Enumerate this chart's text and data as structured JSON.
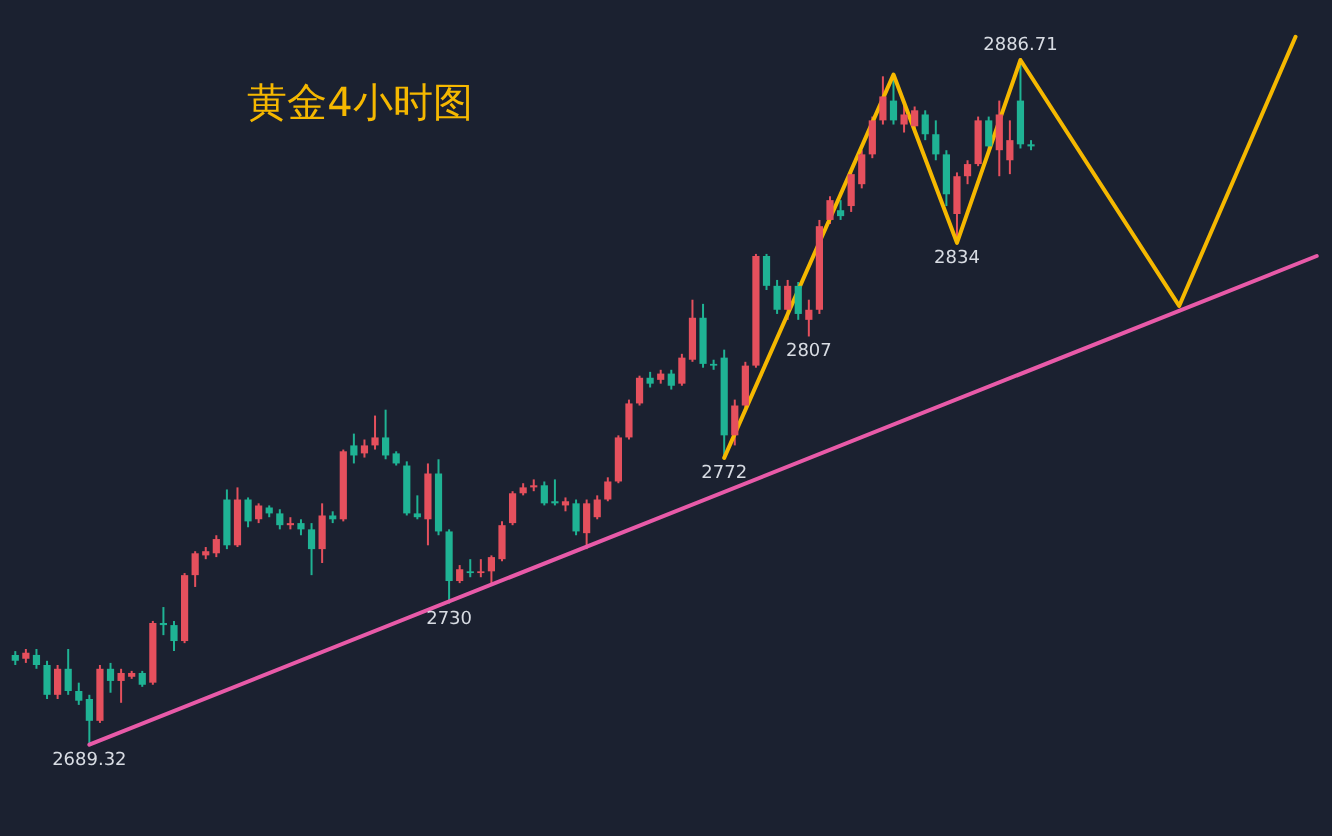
{
  "chart_data": {
    "type": "candlestick",
    "title": "黄金4小时图",
    "categories": [
      null,
      null,
      null,
      null,
      null,
      null,
      null,
      null,
      null,
      null,
      null,
      null,
      null,
      null,
      null,
      null,
      null,
      null,
      null,
      null,
      null,
      null,
      null,
      null,
      null,
      null,
      null,
      null,
      null,
      null,
      null,
      null,
      null,
      null,
      null,
      null,
      null,
      null,
      null,
      null,
      null,
      null,
      null,
      null,
      null,
      null,
      null,
      null,
      null,
      null,
      null,
      null,
      null,
      null,
      null,
      null,
      null,
      null,
      null,
      null,
      null,
      null,
      null,
      null,
      null,
      null,
      null,
      null,
      null,
      null,
      null,
      null,
      null,
      null,
      null,
      null,
      null,
      null,
      null,
      null,
      null,
      null,
      null,
      null,
      null,
      null,
      null,
      null,
      null,
      null,
      null,
      null,
      null,
      null,
      null,
      null,
      null,
      null,
      null,
      null,
      null,
      null,
      null,
      null,
      null,
      null,
      null,
      null,
      null,
      null,
      null,
      null,
      null,
      null,
      null,
      null,
      null,
      null,
      null,
      null,
      null,
      null,
      null,
      null
    ],
    "ohlc": [
      [
        2715.2,
        2716.3,
        2712.3,
        2713.5
      ],
      [
        2714.1,
        2716.9,
        2712.9,
        2715.8
      ],
      [
        2715.2,
        2716.9,
        2711.2,
        2712.3
      ],
      [
        2712.3,
        2713.5,
        2702.5,
        2703.7
      ],
      [
        2703.7,
        2712.3,
        2702.5,
        2711.2
      ],
      [
        2711.2,
        2716.9,
        2703.7,
        2704.8
      ],
      [
        2704.8,
        2707.2,
        2700.8,
        2702.0
      ],
      [
        2702.5,
        2703.7,
        2689.32,
        2696.2
      ],
      [
        2696.2,
        2712.3,
        2695.6,
        2711.2
      ],
      [
        2711.2,
        2712.9,
        2704.3,
        2707.7
      ],
      [
        2707.7,
        2711.2,
        2701.4,
        2710.0
      ],
      [
        2708.9,
        2710.6,
        2708.3,
        2710.0
      ],
      [
        2710.0,
        2710.6,
        2706.0,
        2706.6
      ],
      [
        2707.2,
        2725.0,
        2706.6,
        2724.4
      ],
      [
        2724.4,
        2729.0,
        2720.9,
        2723.8
      ],
      [
        2723.8,
        2725.0,
        2716.3,
        2719.2
      ],
      [
        2719.2,
        2738.8,
        2718.6,
        2738.2
      ],
      [
        2738.2,
        2745.1,
        2734.8,
        2744.5
      ],
      [
        2743.9,
        2746.3,
        2742.8,
        2745.1
      ],
      [
        2744.5,
        2749.7,
        2743.4,
        2748.6
      ],
      [
        2760.0,
        2762.9,
        2745.7,
        2746.8
      ],
      [
        2746.8,
        2763.5,
        2746.3,
        2760.0
      ],
      [
        2760.0,
        2760.6,
        2752.0,
        2753.7
      ],
      [
        2754.3,
        2758.9,
        2753.2,
        2758.3
      ],
      [
        2757.7,
        2758.3,
        2754.9,
        2756.0
      ],
      [
        2756.0,
        2757.2,
        2751.4,
        2752.6
      ],
      [
        2752.6,
        2754.9,
        2751.4,
        2753.2
      ],
      [
        2753.2,
        2754.3,
        2749.7,
        2751.4
      ],
      [
        2751.4,
        2753.2,
        2738.2,
        2745.7
      ],
      [
        2745.7,
        2758.9,
        2741.7,
        2755.4
      ],
      [
        2755.4,
        2756.6,
        2753.2,
        2754.3
      ],
      [
        2754.3,
        2774.4,
        2753.7,
        2773.9
      ],
      [
        2775.6,
        2779.0,
        2770.4,
        2772.7
      ],
      [
        2773.3,
        2777.3,
        2772.1,
        2775.6
      ],
      [
        2775.6,
        2784.2,
        2774.4,
        2777.9
      ],
      [
        2777.9,
        2785.9,
        2771.6,
        2772.7
      ],
      [
        2773.3,
        2773.9,
        2769.8,
        2770.4
      ],
      [
        2769.8,
        2771.0,
        2755.4,
        2756.0
      ],
      [
        2756.0,
        2761.2,
        2754.3,
        2754.9
      ],
      [
        2754.3,
        2770.4,
        2746.8,
        2767.5
      ],
      [
        2767.5,
        2771.6,
        2749.7,
        2750.8
      ],
      [
        2750.8,
        2751.4,
        2730,
        2736.5
      ],
      [
        2736.5,
        2741.1,
        2735.9,
        2739.9
      ],
      [
        2739.3,
        2742.8,
        2737.6,
        2738.8
      ],
      [
        2738.8,
        2742.8,
        2737.6,
        2739.3
      ],
      [
        2739.3,
        2743.9,
        2735.9,
        2743.4
      ],
      [
        2742.8,
        2753.7,
        2742.2,
        2752.6
      ],
      [
        2753.2,
        2762.4,
        2752.6,
        2761.8
      ],
      [
        2761.8,
        2764.7,
        2761.2,
        2763.5
      ],
      [
        2763.5,
        2765.8,
        2762.4,
        2764.1
      ],
      [
        2764.1,
        2765.2,
        2758.3,
        2758.9
      ],
      [
        2759.5,
        2765.8,
        2758.3,
        2758.9
      ],
      [
        2758.3,
        2760.6,
        2756.6,
        2759.5
      ],
      [
        2758.9,
        2760.0,
        2749.7,
        2750.8
      ],
      [
        2750.3,
        2760.0,
        2745.7,
        2758.9
      ],
      [
        2754.9,
        2761.2,
        2754.3,
        2760.0
      ],
      [
        2760.0,
        2766.4,
        2759.5,
        2765.2
      ],
      [
        2765.2,
        2778.5,
        2764.7,
        2777.9
      ],
      [
        2777.9,
        2788.8,
        2777.3,
        2787.7
      ],
      [
        2787.7,
        2795.7,
        2787.1,
        2795.1
      ],
      [
        2795.1,
        2796.8,
        2792.3,
        2793.4
      ],
      [
        2794.5,
        2797.4,
        2793.4,
        2796.3
      ],
      [
        2796.3,
        2797.4,
        2791.7,
        2792.8
      ],
      [
        2793.4,
        2802.0,
        2792.8,
        2800.9
      ],
      [
        2800.3,
        2817.6,
        2799.7,
        2812.4
      ],
      [
        2812.4,
        2816.4,
        2798.0,
        2799.1
      ],
      [
        2799.1,
        2800.3,
        2797.4,
        2798.6
      ],
      [
        2800.9,
        2803.2,
        2772,
        2778.5
      ],
      [
        2778.5,
        2788.8,
        2775.6,
        2787.1
      ],
      [
        2787.1,
        2799.7,
        2786.5,
        2798.6
      ],
      [
        2798.6,
        2830.8,
        2798.0,
        2830.2
      ],
      [
        2830.2,
        2830.8,
        2820.4,
        2821.6
      ],
      [
        2821.6,
        2823.3,
        2813.5,
        2814.7
      ],
      [
        2814.7,
        2823.3,
        2811.8,
        2821.6
      ],
      [
        2821.6,
        2822.7,
        2811.8,
        2813.5
      ],
      [
        2811.8,
        2817.6,
        2807,
        2814.7
      ],
      [
        2814.7,
        2840.6,
        2813.5,
        2838.8
      ],
      [
        2840.6,
        2847.4,
        2839.4,
        2846.3
      ],
      [
        2843.4,
        2846.3,
        2840.6,
        2841.7
      ],
      [
        2844.6,
        2854.9,
        2842.9,
        2853.8
      ],
      [
        2850.9,
        2860.7,
        2849.7,
        2859.5
      ],
      [
        2859.5,
        2870.4,
        2858.4,
        2869.3
      ],
      [
        2869.3,
        2882.0,
        2868.1,
        2876.2
      ],
      [
        2875.0,
        2882.5,
        2868.1,
        2869.3
      ],
      [
        2868.1,
        2873.9,
        2865.8,
        2871.0
      ],
      [
        2867.6,
        2873.3,
        2865.8,
        2872.2
      ],
      [
        2871.0,
        2872.2,
        2863.6,
        2865.3
      ],
      [
        2865.3,
        2869.3,
        2857.8,
        2859.5
      ],
      [
        2859.5,
        2860.7,
        2844.6,
        2848.0
      ],
      [
        2842.3,
        2854.3,
        2834,
        2853.2
      ],
      [
        2853.2,
        2857.8,
        2850.9,
        2856.7
      ],
      [
        2856.7,
        2870.4,
        2856.1,
        2869.3
      ],
      [
        2869.3,
        2870.4,
        2860.7,
        2861.8
      ],
      [
        2860.7,
        2875.0,
        2853.2,
        2871.0
      ],
      [
        2857.8,
        2869.3,
        2853.8,
        2863.6
      ],
      [
        2875.0,
        2886.71,
        2861.2,
        2862.4
      ],
      [
        2862.4,
        2863.6,
        2860.7,
        2861.8
      ],
      null,
      null,
      null,
      null,
      null,
      null,
      null,
      null,
      null,
      null,
      null,
      null,
      null,
      null,
      null,
      null,
      null,
      null,
      null,
      null,
      null,
      null,
      null,
      null,
      null,
      null,
      null
    ],
    "colors": [
      "#1fb394",
      "#e5505d",
      "#1fb394",
      "#1fb394",
      "#e5505d",
      "#1fb394",
      "#1fb394",
      "#1fb394",
      "#e5505d",
      "#1fb394",
      "#e5505d",
      "#e5505d",
      "#1fb394",
      "#e5505d",
      "#1fb394",
      "#1fb394",
      "#e5505d",
      "#e5505d",
      "#e5505d",
      "#e5505d",
      "#1fb394",
      "#e5505d",
      "#1fb394",
      "#e5505d",
      "#1fb394",
      "#1fb394",
      "#e5505d",
      "#1fb394",
      "#1fb394",
      "#e5505d",
      "#1fb394",
      "#e5505d",
      "#1fb394",
      "#e5505d",
      "#e5505d",
      "#1fb394",
      "#1fb394",
      "#1fb394",
      "#1fb394",
      "#e5505d",
      "#1fb394",
      "#1fb394",
      "#e5505d",
      "#1fb394",
      "#e5505d",
      "#e5505d",
      "#e5505d",
      "#e5505d",
      "#e5505d",
      "#e5505d",
      "#1fb394",
      "#1fb394",
      "#e5505d",
      "#1fb394",
      "#e5505d",
      "#e5505d",
      "#e5505d",
      "#e5505d",
      "#e5505d",
      "#e5505d",
      "#1fb394",
      "#e5505d",
      "#1fb394",
      "#e5505d",
      "#e5505d",
      "#1fb394",
      "#1fb394",
      "#1fb394",
      "#e5505d",
      "#e5505d",
      "#e5505d",
      "#1fb394",
      "#1fb394",
      "#e5505d",
      "#1fb394",
      "#e5505d",
      "#e5505d",
      "#e5505d",
      "#1fb394",
      "#e5505d",
      "#e5505d",
      "#e5505d",
      "#e5505d",
      "#1fb394",
      "#e5505d",
      "#e5505d",
      "#1fb394",
      "#1fb394",
      "#1fb394",
      "#e5505d",
      "#e5505d",
      "#e5505d",
      "#1fb394",
      "#e5505d",
      "#e5505d",
      "#1fb394",
      "#1fb394",
      null,
      null,
      null,
      null,
      null,
      null,
      null,
      null,
      null,
      null,
      null,
      null,
      null,
      null,
      null,
      null,
      null,
      null,
      null,
      null,
      null,
      null,
      null,
      null,
      null,
      null,
      null
    ],
    "series": [
      {
        "type": "line",
        "color": "#e85aa8",
        "values": [
          null,
          null,
          null,
          null,
          null,
          null,
          null,
          2689.32,
          null,
          null,
          null,
          null,
          null,
          null,
          null,
          null,
          null,
          null,
          null,
          null,
          null,
          null,
          null,
          null,
          null,
          null,
          null,
          null,
          null,
          null,
          null,
          null,
          null,
          null,
          null,
          null,
          null,
          null,
          null,
          null,
          null,
          null,
          null,
          null,
          null,
          null,
          null,
          null,
          null,
          null,
          null,
          null,
          null,
          null,
          null,
          null,
          null,
          null,
          null,
          null,
          null,
          null,
          null,
          null,
          null,
          null,
          null,
          null,
          null,
          null,
          null,
          null,
          null,
          null,
          null,
          null,
          null,
          null,
          null,
          null,
          null,
          null,
          null,
          null,
          null,
          null,
          null,
          null,
          null,
          null,
          null,
          null,
          null,
          null,
          null,
          null,
          null,
          null,
          null,
          null,
          null,
          null,
          null,
          null,
          null,
          null,
          null,
          null,
          null,
          null,
          null,
          null,
          null,
          null,
          null,
          null,
          null,
          null,
          null,
          null,
          null,
          null,
          null,
          2830.2
        ]
      },
      {
        "type": "line",
        "color": "#f5b800",
        "values": [
          null,
          null,
          null,
          null,
          null,
          null,
          null,
          null,
          null,
          null,
          null,
          null,
          null,
          null,
          null,
          null,
          null,
          null,
          null,
          null,
          null,
          null,
          null,
          null,
          null,
          null,
          null,
          null,
          null,
          null,
          null,
          null,
          null,
          null,
          null,
          null,
          null,
          null,
          null,
          null,
          null,
          null,
          null,
          null,
          null,
          null,
          null,
          null,
          null,
          null,
          null,
          null,
          null,
          null,
          null,
          null,
          null,
          null,
          null,
          null,
          null,
          null,
          null,
          null,
          null,
          null,
          null,
          2772,
          null,
          null,
          null,
          null,
          null,
          null,
          null,
          null,
          null,
          null,
          null,
          null,
          null,
          null,
          null,
          2882.5,
          null,
          null,
          null,
          null,
          null,
          2834,
          null,
          null,
          null,
          null,
          null,
          2886.71,
          null,
          null,
          null,
          null,
          null,
          null,
          null,
          null,
          null,
          null,
          null,
          null,
          null,
          null,
          2815.8,
          null,
          null,
          null,
          null,
          null,
          null,
          null,
          null,
          null,
          null,
          2893.4,
          null,
          null
        ]
      }
    ],
    "ylim": [
      2663,
      2904
    ],
    "tick_labels": false,
    "grid": false,
    "annotations": [
      {
        "text": "2689.32",
        "y": 2689.32
      },
      {
        "text": "2730",
        "y": 2730
      },
      {
        "text": "2772",
        "y": 2772
      },
      {
        "text": "2807",
        "y": 2807
      },
      {
        "text": "2834",
        "y": 2834
      },
      {
        "text": "2886.71",
        "y": 2886.71
      }
    ]
  }
}
